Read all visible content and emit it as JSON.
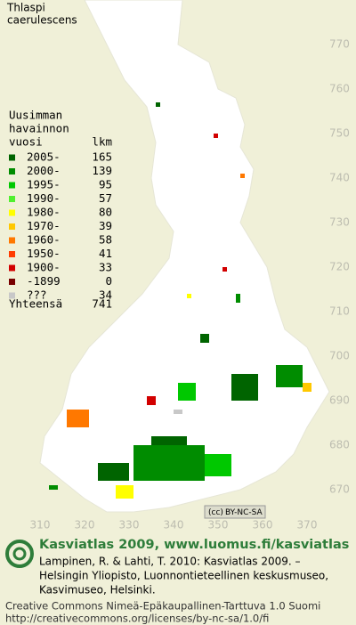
{
  "title": [
    "Thlaspi",
    "caerulescens"
  ],
  "legend": {
    "header": [
      "Uusimman",
      "havainnon",
      "vuosi"
    ],
    "count_header": "lkm",
    "rows": [
      {
        "label": "2005-",
        "count": 165,
        "color": "#006400"
      },
      {
        "label": "2000-",
        "count": 139,
        "color": "#008c00"
      },
      {
        "label": "1995-",
        "count": 95,
        "color": "#00c800"
      },
      {
        "label": "1990-",
        "count": 57,
        "color": "#50f030"
      },
      {
        "label": "1980-",
        "count": 80,
        "color": "#ffff00"
      },
      {
        "label": "1970-",
        "count": 39,
        "color": "#ffc800"
      },
      {
        "label": "1960-",
        "count": 58,
        "color": "#ff7800"
      },
      {
        "label": "1950-",
        "count": 41,
        "color": "#ff3c00"
      },
      {
        "label": "1900-",
        "count": 33,
        "color": "#d20000"
      },
      {
        "label": "-1899",
        "count": 0,
        "color": "#780000"
      },
      {
        "label": "???",
        "count": 34,
        "color": "#c8c8c8"
      }
    ],
    "total_label": "Yhteensä",
    "total": 741
  },
  "axes": {
    "yticks": [
      770,
      760,
      750,
      740,
      730,
      720,
      710,
      700,
      690,
      680,
      670
    ],
    "xticks": [
      310,
      320,
      330,
      340,
      350,
      360,
      370
    ]
  },
  "badge": "BY-NC-SA",
  "footer": {
    "brand": "Kasviatlas 2009, www.luomus.fi/kasviatlas",
    "citation": [
      "Lampinen, R. & Lahti, T. 2010: Kasviatlas 2009. –",
      "Helsingin Yliopisto, Luonnontieteellinen keskusmuseo,",
      "Kasvimuseo, Helsinki."
    ],
    "license": [
      "Creative Commons Nimeä-Epäkaupallinen-Tarttuva 1.0 Suomi",
      "http://creativecommons.org/licenses/by-nc-sa/1.0/fi"
    ]
  }
}
